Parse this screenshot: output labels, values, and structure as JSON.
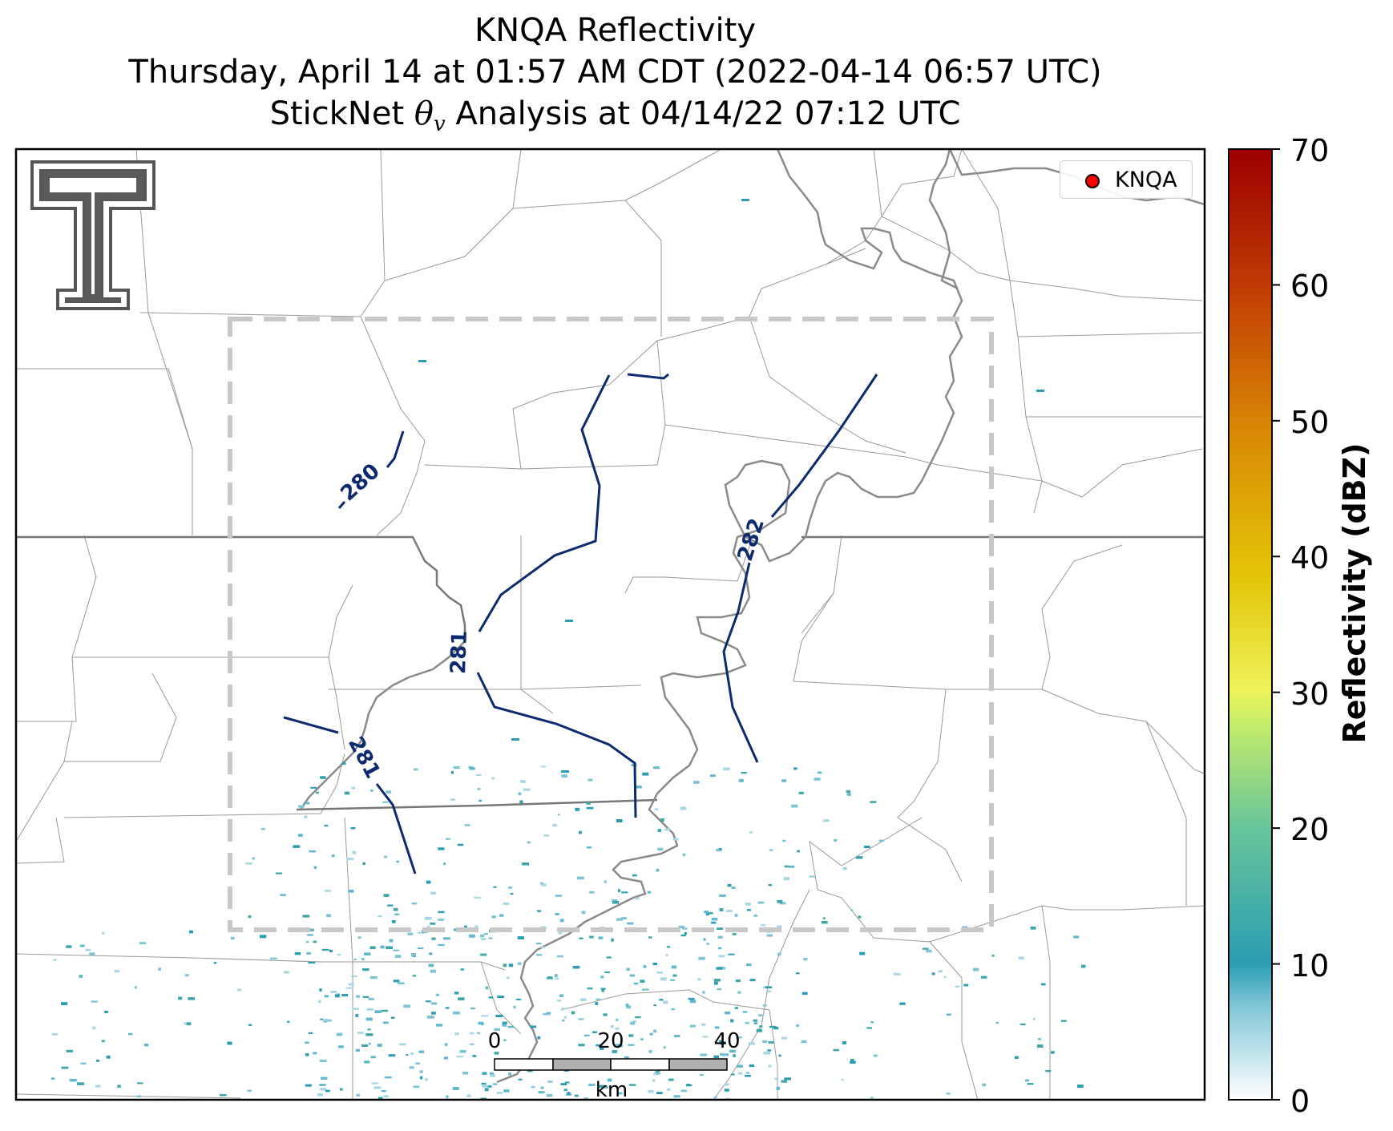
{
  "title": {
    "line1": "KNQA Reflectivity",
    "line2": "Thursday, April 14 at 01:57 AM CDT (2022-04-14 06:57 UTC)",
    "line3_prefix": "StickNet ",
    "line3_theta": "θ",
    "line3_sub": "v",
    "line3_suffix": " Analysis at 04/14/22 07:12 UTC"
  },
  "legend": {
    "entry": "KNQA",
    "marker_color": "#ff0000"
  },
  "colorbar": {
    "label": "Reflectivity (dBZ)",
    "ticks": [
      "0",
      "10",
      "20",
      "30",
      "40",
      "50",
      "60",
      "70"
    ],
    "range": [
      0,
      70
    ],
    "stops": [
      "#ffffff",
      "#2a9db3",
      "#67c59a",
      "#c9ef68",
      "#f2ec3b",
      "#e1b006",
      "#d26b06",
      "#b71e02",
      "#9b0000"
    ]
  },
  "contours": {
    "color": "#0d2a6e",
    "labels": [
      "280",
      "281",
      "281",
      "282"
    ]
  },
  "scale_bar": {
    "ticks": [
      "0",
      "20",
      "40"
    ],
    "unit": "km"
  },
  "analysis_box": {
    "style": "dashed",
    "color": "#c8c8c8"
  },
  "logo": {
    "name": "Texas Tech Double T",
    "text": "T"
  },
  "colors": {
    "county_lines": "#888888",
    "state_lines": "#777777",
    "river": "#888888"
  }
}
